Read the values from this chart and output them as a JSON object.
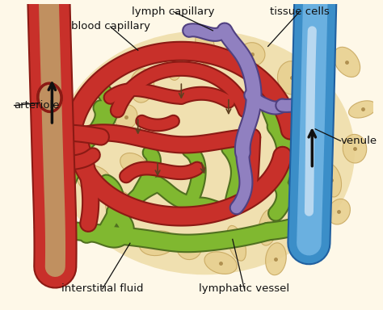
{
  "bg_color": "#ffffff",
  "colors": {
    "red": "#c8302a",
    "red_dark": "#8b1a14",
    "red_inner": "#d04040",
    "blue": "#3b8ec8",
    "blue_light": "#6ab0e0",
    "blue_dark": "#2060a0",
    "purple": "#7060a8",
    "purple_light": "#9080c0",
    "purple_dark": "#504080",
    "green": "#80b830",
    "green_dark": "#507020",
    "green_light": "#a0d040",
    "tan_bg": "#f0e0b0",
    "tan_cell": "#e8d090",
    "tan_cell_edge": "#c8a860",
    "arteriole_inner": "#c09060",
    "cream": "#fef8e8"
  },
  "labels": {
    "lymph_capillary": "lymph capillary",
    "tissue_cells": "tissue cells",
    "blood_capillary": "blood capillary",
    "arteriole": "arteriole",
    "venule": "venule",
    "interstitial_fluid": "interstitial fluid",
    "lymphatic_vessel": "lymphatic vessel"
  }
}
